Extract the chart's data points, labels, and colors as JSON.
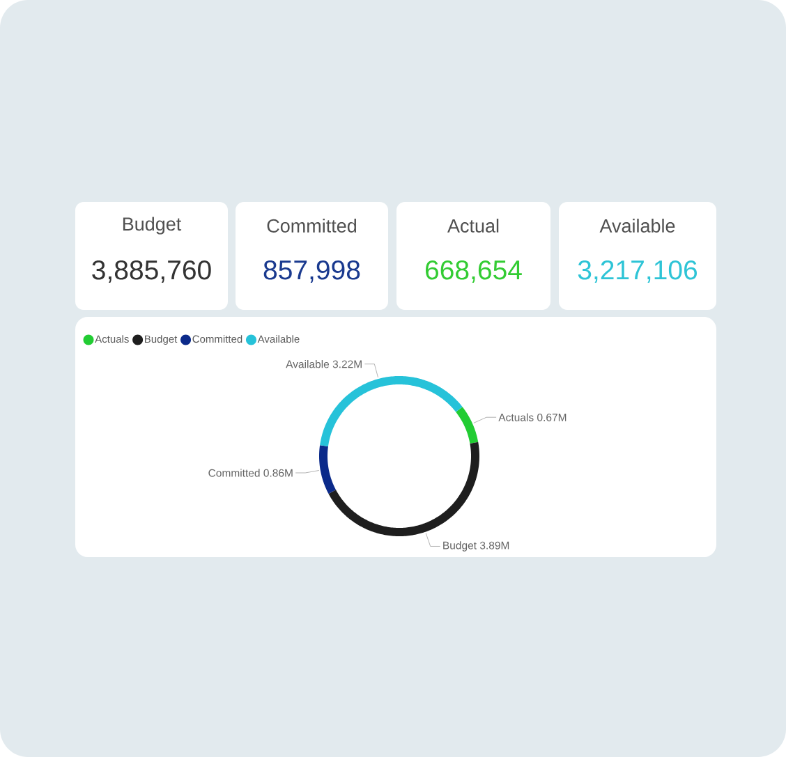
{
  "chart_data": [
    {
      "type": "other",
      "annotations": [
        "Budget",
        "3,885,760",
        "Committed",
        "857,998",
        "Actual",
        "668,654",
        "Available",
        "3,217,106"
      ]
    },
    {
      "type": "donut",
      "categories": [
        "Actuals",
        "Budget",
        "Committed",
        "Available"
      ],
      "values": [
        0.67,
        3.89,
        0.86,
        3.22
      ],
      "value_labels": [
        "0.67M",
        "3.89M",
        "0.86M",
        "3.22M"
      ],
      "colors": [
        "#22cc33",
        "#1e1e1e",
        "#0b2a8a",
        "#26c2d9"
      ],
      "legend": "top left"
    }
  ]
}
